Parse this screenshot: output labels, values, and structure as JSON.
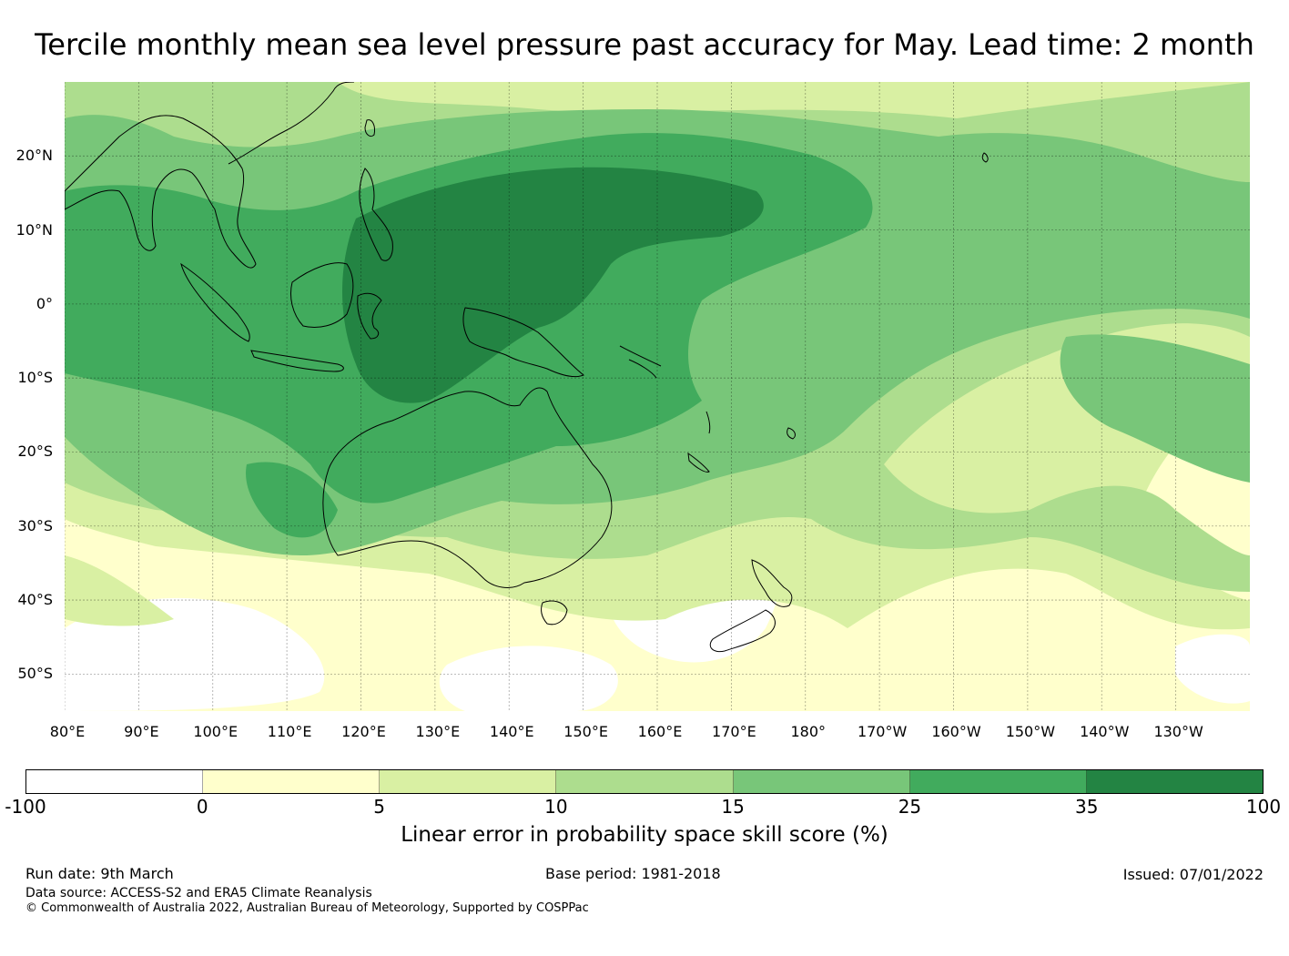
{
  "title": "Tercile monthly mean sea level pressure past accuracy for May. Lead time: 2 month",
  "map": {
    "lat_labels": [
      "20°N",
      "10°N",
      "0°",
      "10°S",
      "20°S",
      "30°S",
      "40°S",
      "50°S"
    ],
    "lon_labels": [
      "80°E",
      "90°E",
      "100°E",
      "110°E",
      "120°E",
      "130°E",
      "140°E",
      "150°E",
      "160°E",
      "170°E",
      "180°",
      "170°W",
      "160°W",
      "150°W",
      "140°W",
      "130°W"
    ],
    "lon_range": [
      80,
      240
    ],
    "lat_range": [
      -55,
      30
    ]
  },
  "colorbar": {
    "ticks": [
      "-100",
      "0",
      "5",
      "10",
      "15",
      "25",
      "35",
      "100"
    ],
    "colors": [
      "#ffffff",
      "#ffffcc",
      "#d9f0a3",
      "#addd8e",
      "#78c679",
      "#41ab5d",
      "#238443"
    ],
    "label": "Linear error in probability space skill score (%)"
  },
  "footer": {
    "run_date": "Run date: 9th March",
    "base_period": "Base period: 1981-2018",
    "issued": "Issued: 07/01/2022",
    "data_source": "Data source: ACCESS-S2 and ERA5 Climate Reanalysis",
    "copyright": "© Commonwealth of Australia 2022, Australian Bureau of Meteorology, Supported by COSPPac"
  }
}
